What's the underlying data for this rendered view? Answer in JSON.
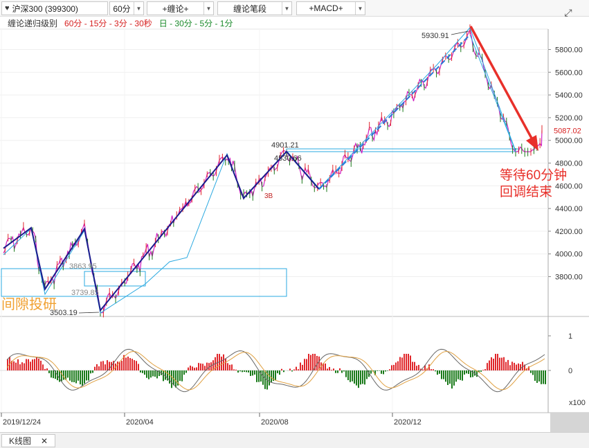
{
  "toolbar": {
    "symbol": "沪深300 (399300)",
    "period": "60分",
    "overlay_btn": "+缠论+",
    "stroke_btn": "缠论笔段",
    "indicator_btn": "+MACD+"
  },
  "subheader": {
    "label": "缠论递归级别",
    "levels_red": "60分 - 15分 - 3分 - 30秒",
    "levels_green": "日 - 30分 - 5分 - 1分"
  },
  "annotations": {
    "wait_line1": "等待60分钟",
    "wait_line2": "回调结束",
    "watermark": "间隙投研",
    "peak_label": "5930.91",
    "high_label": "4901.21",
    "mid_label": "4530.66",
    "low_label1": "3863.95",
    "low_label2": "3739.85",
    "bottom_label": "3503.19",
    "buy_label": "3B",
    "current_price": "5087.02"
  },
  "colors": {
    "up": "#e0262a",
    "down": "#1a7a1a",
    "stroke_blue": "#1c1c8c",
    "cyan": "#28a8e0",
    "magenta": "#d020c0",
    "arrow_red": "#e8302a",
    "watermark": "#f0a030"
  },
  "chart_data": [
    {
      "type": "line",
      "title": "沪深300 (399300) 60分",
      "x_ticks": [
        "2019/12/24",
        "2020/04",
        "2020/08",
        "2020/12"
      ],
      "y_ticks": [
        3800,
        4000,
        4200,
        4400,
        4600,
        4800,
        5000,
        5200,
        5400,
        5600,
        5800
      ],
      "ylim": [
        3480,
        5980
      ],
      "stroke_points": [
        {
          "x": "2019/12/24",
          "y": 4050
        },
        {
          "x": "2020/01",
          "y": 4230
        },
        {
          "x": "2020/02",
          "y": 3690
        },
        {
          "x": "2020/02b",
          "y": 4220
        },
        {
          "x": "2020/03",
          "y": 3503.19
        },
        {
          "x": "2020/07",
          "y": 4870
        },
        {
          "x": "2020/07b",
          "y": 4490
        },
        {
          "x": "2020/08",
          "y": 4901.21
        },
        {
          "x": "2020/09",
          "y": 4570
        },
        {
          "x": "2021/02",
          "y": 5930.91
        },
        {
          "x": "2021/03",
          "y": 4900
        }
      ],
      "last_price": 5087.02
    },
    {
      "type": "bar",
      "title": "MACD",
      "y_ticks": [
        "1",
        "0",
        "x100"
      ],
      "ylim": [
        -1,
        1.5
      ]
    }
  ],
  "bottom": {
    "tab_label": "K线图",
    "tab_close": "✕"
  }
}
